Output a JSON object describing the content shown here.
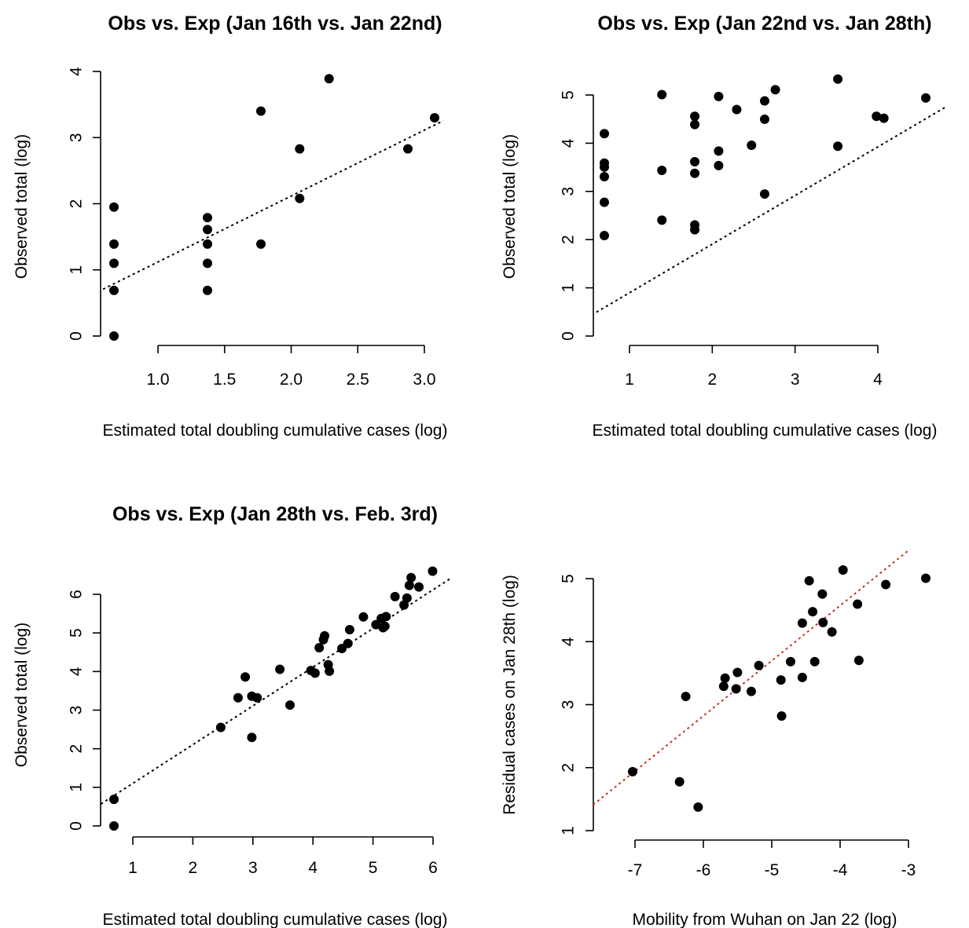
{
  "chart_data": [
    {
      "type": "scatter",
      "title": "Obs vs. Exp (Jan 16th vs. Jan 22nd)",
      "xlabel": "Estimated total doubling cumulative cases (log)",
      "ylabel": "Observed total (log)",
      "xlim": [
        0.69,
        3.1
      ],
      "ylim": [
        0,
        4
      ],
      "x_ticks": [
        "1.0",
        "1.5",
        "2.0",
        "2.5",
        "3.0"
      ],
      "y_ticks": [
        "0",
        "1",
        "2",
        "3",
        "4"
      ],
      "grid": false,
      "reference_line": {
        "style": "dotted",
        "color": "#000000",
        "intercept": 0.1,
        "slope": 1.0
      },
      "points": [
        {
          "x": 0.69,
          "y": 0.0
        },
        {
          "x": 0.69,
          "y": 0.69
        },
        {
          "x": 0.69,
          "y": 1.1
        },
        {
          "x": 0.69,
          "y": 1.39
        },
        {
          "x": 0.69,
          "y": 1.95
        },
        {
          "x": 1.39,
          "y": 0.69
        },
        {
          "x": 1.39,
          "y": 1.1
        },
        {
          "x": 1.39,
          "y": 1.39
        },
        {
          "x": 1.39,
          "y": 1.61
        },
        {
          "x": 1.39,
          "y": 1.79
        },
        {
          "x": 1.79,
          "y": 1.39
        },
        {
          "x": 1.79,
          "y": 3.4
        },
        {
          "x": 2.08,
          "y": 2.08
        },
        {
          "x": 2.08,
          "y": 2.83
        },
        {
          "x": 2.3,
          "y": 3.89
        },
        {
          "x": 2.89,
          "y": 2.83
        },
        {
          "x": 3.09,
          "y": 3.3
        }
      ]
    },
    {
      "type": "scatter",
      "title": "Obs vs. Exp (Jan 22nd vs. Jan 28th)",
      "xlabel": "Estimated total doubling cumulative cases (log)",
      "ylabel": "Observed total (log)",
      "xlim": [
        0.69,
        4.6
      ],
      "ylim": [
        0,
        5.3
      ],
      "x_ticks": [
        "1",
        "2",
        "3",
        "4"
      ],
      "y_ticks": [
        "0",
        "1",
        "2",
        "3",
        "4",
        "5"
      ],
      "grid": false,
      "reference_line": {
        "style": "dotted",
        "color": "#000000",
        "intercept": -0.1,
        "slope": 1.0
      },
      "points": [
        {
          "x": 0.69,
          "y": 2.08
        },
        {
          "x": 0.69,
          "y": 2.77
        },
        {
          "x": 0.69,
          "y": 3.3
        },
        {
          "x": 0.69,
          "y": 3.5
        },
        {
          "x": 0.69,
          "y": 3.58
        },
        {
          "x": 0.69,
          "y": 4.19
        },
        {
          "x": 1.39,
          "y": 2.4
        },
        {
          "x": 1.39,
          "y": 3.43
        },
        {
          "x": 1.39,
          "y": 5.0
        },
        {
          "x": 1.79,
          "y": 2.2
        },
        {
          "x": 1.79,
          "y": 2.3
        },
        {
          "x": 1.79,
          "y": 3.37
        },
        {
          "x": 1.79,
          "y": 3.61
        },
        {
          "x": 1.79,
          "y": 4.38
        },
        {
          "x": 1.79,
          "y": 4.55
        },
        {
          "x": 2.08,
          "y": 3.53
        },
        {
          "x": 2.08,
          "y": 3.83
        },
        {
          "x": 2.08,
          "y": 4.96
        },
        {
          "x": 2.3,
          "y": 4.69
        },
        {
          "x": 2.48,
          "y": 3.95
        },
        {
          "x": 2.64,
          "y": 2.94
        },
        {
          "x": 2.64,
          "y": 4.49
        },
        {
          "x": 2.64,
          "y": 4.87
        },
        {
          "x": 2.77,
          "y": 5.1
        },
        {
          "x": 3.53,
          "y": 3.93
        },
        {
          "x": 3.53,
          "y": 5.32
        },
        {
          "x": 4.0,
          "y": 4.55
        },
        {
          "x": 4.09,
          "y": 4.51
        },
        {
          "x": 4.6,
          "y": 4.93
        }
      ]
    },
    {
      "type": "scatter",
      "title": "Obs vs. Exp (Jan 28th vs. Feb. 3rd)",
      "xlabel": "Estimated total doubling cumulative cases (log)",
      "ylabel": "Observed total (log)",
      "xlim": [
        0.69,
        6.05
      ],
      "ylim": [
        0,
        6.65
      ],
      "x_ticks": [
        "1",
        "2",
        "3",
        "4",
        "5",
        "6"
      ],
      "y_ticks": [
        "0",
        "1",
        "2",
        "3",
        "4",
        "5",
        "6"
      ],
      "grid": false,
      "reference_line": {
        "style": "dotted",
        "color": "#000000",
        "intercept": 0.1,
        "slope": 1.0
      },
      "points": [
        {
          "x": 0.69,
          "y": 0.0
        },
        {
          "x": 0.69,
          "y": 0.69
        },
        {
          "x": 2.48,
          "y": 2.56
        },
        {
          "x": 2.77,
          "y": 3.33
        },
        {
          "x": 2.89,
          "y": 3.87
        },
        {
          "x": 3.0,
          "y": 2.3
        },
        {
          "x": 3.0,
          "y": 3.37
        },
        {
          "x": 3.09,
          "y": 3.33
        },
        {
          "x": 3.47,
          "y": 4.07
        },
        {
          "x": 3.64,
          "y": 3.14
        },
        {
          "x": 3.99,
          "y": 4.04
        },
        {
          "x": 4.06,
          "y": 3.97
        },
        {
          "x": 4.13,
          "y": 4.63
        },
        {
          "x": 4.2,
          "y": 4.84
        },
        {
          "x": 4.22,
          "y": 4.94
        },
        {
          "x": 4.28,
          "y": 4.19
        },
        {
          "x": 4.3,
          "y": 4.02
        },
        {
          "x": 4.51,
          "y": 4.61
        },
        {
          "x": 4.61,
          "y": 4.74
        },
        {
          "x": 4.64,
          "y": 5.1
        },
        {
          "x": 4.87,
          "y": 5.43
        },
        {
          "x": 5.08,
          "y": 5.23
        },
        {
          "x": 5.17,
          "y": 5.39
        },
        {
          "x": 5.2,
          "y": 5.15
        },
        {
          "x": 5.23,
          "y": 5.19
        },
        {
          "x": 5.25,
          "y": 5.44
        },
        {
          "x": 5.4,
          "y": 5.96
        },
        {
          "x": 5.55,
          "y": 5.74
        },
        {
          "x": 5.6,
          "y": 5.92
        },
        {
          "x": 5.64,
          "y": 6.25
        },
        {
          "x": 5.67,
          "y": 6.45
        },
        {
          "x": 5.8,
          "y": 6.21
        },
        {
          "x": 6.03,
          "y": 6.62
        }
      ]
    },
    {
      "type": "scatter",
      "title": "",
      "xlabel": "Mobility from Wuhan on Jan 22 (log)",
      "ylabel": "Residual cases on Jan 28th (log)",
      "xlim": [
        -7.0,
        -2.75
      ],
      "ylim": [
        1.39,
        5.14
      ],
      "x_ticks": [
        "-7",
        "-6",
        "-5",
        "-4",
        "-3"
      ],
      "y_ticks": [
        "1",
        "2",
        "3",
        "4",
        "5"
      ],
      "grid": false,
      "reference_line": {
        "style": "dotted",
        "color": "#c0392b",
        "intercept": 8.09,
        "slope": 0.88
      },
      "points": [
        {
          "x": -7.0,
          "y": 1.95
        },
        {
          "x": -6.32,
          "y": 1.79
        },
        {
          "x": -6.05,
          "y": 1.39
        },
        {
          "x": -6.23,
          "y": 3.14
        },
        {
          "x": -5.68,
          "y": 3.3
        },
        {
          "x": -5.66,
          "y": 3.43
        },
        {
          "x": -5.5,
          "y": 3.26
        },
        {
          "x": -5.48,
          "y": 3.52
        },
        {
          "x": -5.28,
          "y": 3.22
        },
        {
          "x": -5.17,
          "y": 3.63
        },
        {
          "x": -4.84,
          "y": 2.83
        },
        {
          "x": -4.85,
          "y": 3.4
        },
        {
          "x": -4.71,
          "y": 3.69
        },
        {
          "x": -4.54,
          "y": 3.44
        },
        {
          "x": -4.54,
          "y": 4.3
        },
        {
          "x": -4.44,
          "y": 4.97
        },
        {
          "x": -4.39,
          "y": 4.48
        },
        {
          "x": -4.36,
          "y": 3.69
        },
        {
          "x": -4.25,
          "y": 4.76
        },
        {
          "x": -4.24,
          "y": 4.31
        },
        {
          "x": -4.11,
          "y": 4.16
        },
        {
          "x": -3.95,
          "y": 5.14
        },
        {
          "x": -3.74,
          "y": 4.6
        },
        {
          "x": -3.72,
          "y": 3.71
        },
        {
          "x": -3.33,
          "y": 4.91
        },
        {
          "x": -2.75,
          "y": 5.01
        }
      ]
    }
  ]
}
